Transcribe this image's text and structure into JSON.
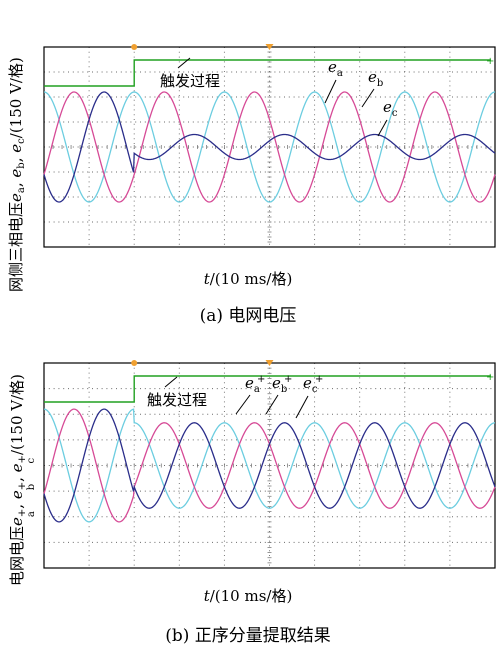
{
  "colors": {
    "ea": "#6ccde0",
    "eb": "#d64a96",
    "ec": "#2a2d8a",
    "trigger": "#20a020",
    "marker": "#f0a030",
    "grid": "#6a6a6a",
    "frame": "#000000"
  },
  "chart_data": [
    {
      "type": "line",
      "panel": "a",
      "ylabel": "网侧三相电压e_a, e_b, e_c/(150 V/格)",
      "ylabel_parts": {
        "prefix": "网侧三相电压",
        "v1": "e",
        "s1": "a",
        "v2": "e",
        "s2": "b",
        "v3": "e",
        "s3": "c",
        "unit": "/(150 V/格)"
      },
      "xlabel": {
        "var": "t",
        "unit": "/(10 ms/格)"
      },
      "caption": "(a) 电网电压",
      "annotation": "触发过程",
      "x_unit": "ms",
      "x_range": [
        0,
        100
      ],
      "x_divisions": 10,
      "y_unit": "V",
      "y_range": [
        -600,
        600
      ],
      "y_divisions": 8,
      "trigger_time": 20,
      "grid": true,
      "series": [
        {
          "name": "e_a",
          "label_text": "e",
          "label_sub": "a",
          "key": "ea",
          "amplitude": 330,
          "amplitude_after": 330,
          "freq_hz": 50,
          "phase_deg": 0
        },
        {
          "name": "e_b",
          "label_text": "e",
          "label_sub": "b",
          "key": "eb",
          "amplitude": 330,
          "amplitude_after": 330,
          "freq_hz": 50,
          "phase_deg": -120
        },
        {
          "name": "e_c",
          "label_text": "e",
          "label_sub": "c",
          "key": "ec",
          "amplitude": 330,
          "amplitude_after": 75,
          "freq_hz": 50,
          "phase_deg": 120
        }
      ]
    },
    {
      "type": "line",
      "panel": "b",
      "ylabel": "电网电压e_a^+, e_b^+, e_c^+/(150 V/格)",
      "ylabel_parts": {
        "prefix": "电网电压",
        "v1": "e",
        "s1": "a",
        "v2": "e",
        "s2": "b",
        "v3": "e",
        "s3": "c",
        "sup": "+",
        "unit": "/(150 V/格)"
      },
      "xlabel": {
        "var": "t",
        "unit": "/(10 ms/格)"
      },
      "caption": "(b) 正序分量提取结果",
      "annotation": "触发过程",
      "x_unit": "ms",
      "x_range": [
        0,
        100
      ],
      "x_divisions": 10,
      "y_unit": "V",
      "y_range": [
        -600,
        600
      ],
      "y_divisions": 8,
      "trigger_time": 20,
      "grid": true,
      "series": [
        {
          "name": "e_a^+",
          "label_text": "e",
          "label_sub": "a",
          "label_sup": "+",
          "key": "ea",
          "amplitude": 330,
          "amplitude_after": 250,
          "freq_hz": 50,
          "phase_deg": 0
        },
        {
          "name": "e_b^+",
          "label_text": "e",
          "label_sub": "b",
          "label_sup": "+",
          "key": "eb",
          "amplitude": 330,
          "amplitude_after": 250,
          "freq_hz": 50,
          "phase_deg": -120
        },
        {
          "name": "e_c^+",
          "label_text": "e",
          "label_sub": "c",
          "label_sup": "+",
          "key": "ec",
          "amplitude": 330,
          "amplitude_after": 250,
          "freq_hz": 50,
          "phase_deg": 120
        }
      ]
    }
  ]
}
